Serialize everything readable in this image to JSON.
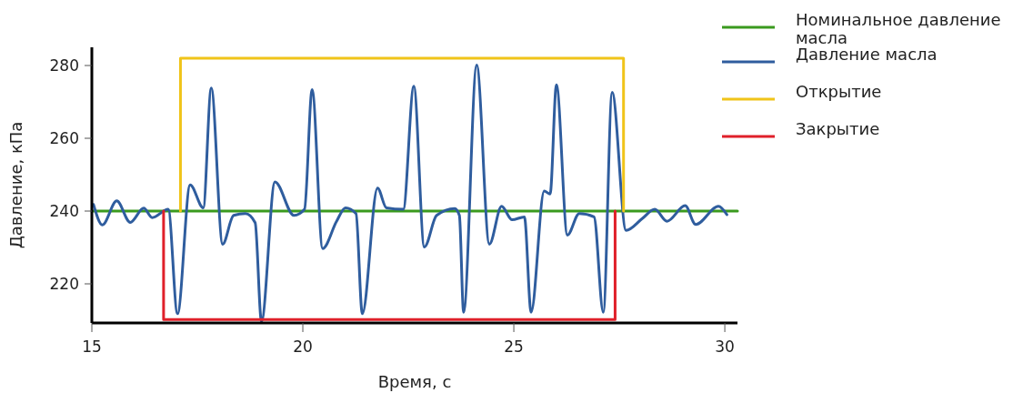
{
  "chart_data": {
    "type": "line",
    "xlabel": "Время, с",
    "ylabel": "Давление, кПа",
    "xlim": [
      15,
      30.3
    ],
    "ylim": [
      209.25,
      285
    ],
    "xticks": [
      15,
      20,
      25,
      30
    ],
    "yticks": [
      220,
      240,
      260,
      280
    ],
    "grid": false,
    "legend": "top right",
    "marker": "none",
    "line_style": "solid",
    "series": [
      {
        "name": "Номинальное давление масла",
        "color": "#3a9a1e",
        "x": [
          15,
          30.3
        ],
        "values": [
          240,
          240
        ]
      },
      {
        "name": "Давление масла",
        "color": "#2f5d9e",
        "x": [
          15.04,
          15.25,
          15.59,
          15.91,
          16.23,
          16.43,
          16.81,
          17.03,
          17.33,
          17.64,
          17.83,
          18.1,
          18.36,
          18.64,
          18.87,
          19.02,
          19.34,
          19.79,
          20.04,
          20.22,
          20.47,
          20.8,
          21.01,
          21.26,
          21.41,
          21.77,
          21.98,
          22.38,
          22.63,
          22.88,
          23.17,
          23.6,
          23.71,
          23.81,
          24.12,
          24.42,
          24.71,
          24.96,
          25.25,
          25.41,
          25.72,
          25.86,
          26.01,
          26.27,
          26.55,
          26.9,
          27.12,
          27.33,
          27.66,
          28.05,
          28.34,
          28.63,
          29.06,
          29.31,
          29.85,
          30.05
        ],
        "values": [
          241.8,
          236.2,
          242.8,
          236.9,
          240.8,
          238.2,
          240.5,
          211.8,
          247.2,
          240.9,
          273.8,
          230.9,
          238.8,
          239.3,
          236.8,
          209.7,
          248,
          238.8,
          240.5,
          273.4,
          229.7,
          237.2,
          240.9,
          239.3,
          211.8,
          246.3,
          240.9,
          240.5,
          274.3,
          230.1,
          238.8,
          240.7,
          238.8,
          212.2,
          280.1,
          230.9,
          241.3,
          237.6,
          238.4,
          212.2,
          245.5,
          244.7,
          274.7,
          233.4,
          239.3,
          238.4,
          212.2,
          272.6,
          234.7,
          238,
          240.5,
          237.2,
          241.5,
          236.3,
          241.3,
          239
        ]
      },
      {
        "name": "Открытие",
        "color": "#f0c419",
        "x": [
          17.1,
          17.1,
          27.6,
          27.6
        ],
        "values": [
          240,
          282,
          282,
          240
        ]
      },
      {
        "name": "Закрытие",
        "color": "#e0202a",
        "x": [
          16.7,
          16.7,
          27.4,
          27.4
        ],
        "values": [
          240,
          210.2,
          210.2,
          240
        ]
      }
    ]
  }
}
